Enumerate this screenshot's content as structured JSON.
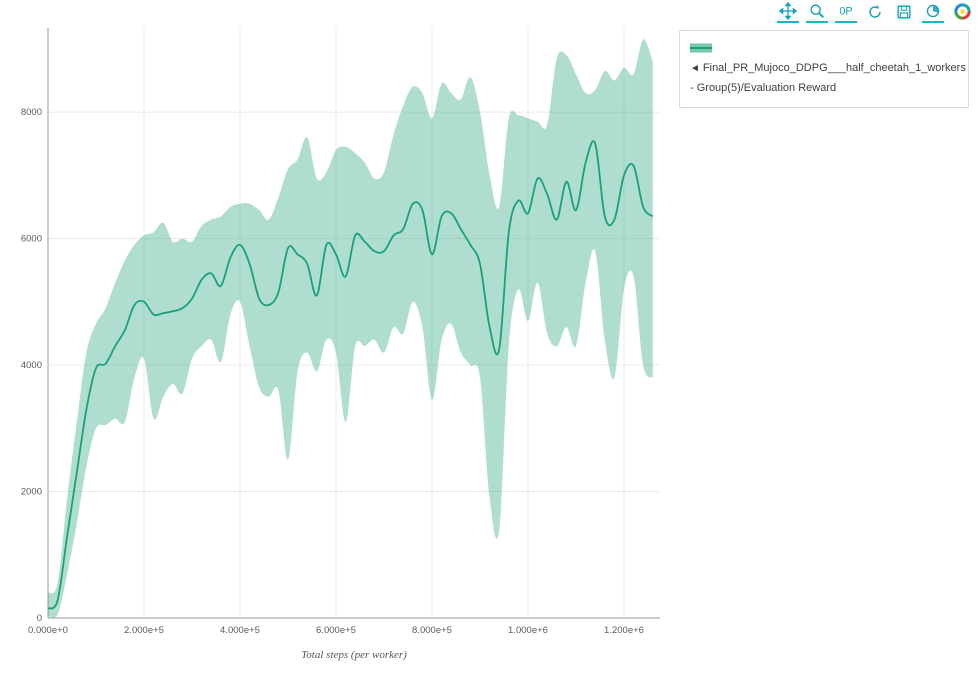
{
  "colors": {
    "accent": "#0fa3b8",
    "line": "#1aa179",
    "band": "#1aa179",
    "band_opacity": 0.35,
    "grid": "#ebebeb",
    "zeroline": "#9a9a9a",
    "logo_segments": [
      "#1aa8a0",
      "#e53935",
      "#43a047",
      "#1e88e5",
      "#fdd835"
    ]
  },
  "toolbar": {
    "zoom_text_icon_label": "0P",
    "icons": [
      {
        "name": "pan-icon",
        "active": true
      },
      {
        "name": "zoom-icon",
        "active": true
      },
      {
        "name": "zoom-text-icon",
        "active": true
      },
      {
        "name": "refresh-icon",
        "active": false
      },
      {
        "name": "save-icon",
        "active": false
      },
      {
        "name": "timer-icon",
        "active": true
      },
      {
        "name": "logo-icon",
        "active": false
      }
    ]
  },
  "legend": {
    "toggle_glyph": "◄",
    "label": "Final_PR_Mujoco_DDPG___half_cheetah_1_workers - Group(5)/Evaluation Reward"
  },
  "chart_data": {
    "type": "line",
    "title": "",
    "xlabel": "Total steps (per worker)",
    "ylabel": "",
    "xlim": [
      0,
      1275000
    ],
    "ylim": [
      0,
      9330
    ],
    "grid": true,
    "legend_position": "top-right",
    "x_ticks": [
      {
        "value": 0,
        "label": "0.000e+0"
      },
      {
        "value": 200000,
        "label": "2.000e+5"
      },
      {
        "value": 400000,
        "label": "4.000e+5"
      },
      {
        "value": 600000,
        "label": "6.000e+5"
      },
      {
        "value": 800000,
        "label": "8.000e+5"
      },
      {
        "value": 1000000,
        "label": "1.000e+6"
      },
      {
        "value": 1200000,
        "label": "1.200e+6"
      }
    ],
    "y_ticks": [
      {
        "value": 0,
        "label": "0"
      },
      {
        "value": 2000,
        "label": "2000"
      },
      {
        "value": 4000,
        "label": "4000"
      },
      {
        "value": 6000,
        "label": "6000"
      },
      {
        "value": 8000,
        "label": "8000"
      }
    ],
    "series": [
      {
        "name": "Final_PR_Mujoco_DDPG___half_cheetah_1_workers - Group(5)/Evaluation Reward",
        "x": [
          0,
          20000,
          40000,
          60000,
          80000,
          100000,
          120000,
          140000,
          160000,
          180000,
          200000,
          220000,
          240000,
          260000,
          280000,
          300000,
          320000,
          340000,
          360000,
          380000,
          400000,
          420000,
          440000,
          460000,
          480000,
          500000,
          520000,
          540000,
          560000,
          580000,
          600000,
          620000,
          640000,
          660000,
          680000,
          700000,
          720000,
          740000,
          760000,
          780000,
          800000,
          820000,
          840000,
          860000,
          880000,
          900000,
          920000,
          940000,
          960000,
          980000,
          1000000,
          1020000,
          1040000,
          1060000,
          1080000,
          1100000,
          1120000,
          1140000,
          1160000,
          1180000,
          1200000,
          1220000,
          1240000,
          1260000
        ],
        "mean": [
          150,
          280,
          1300,
          2300,
          3300,
          3950,
          4020,
          4300,
          4550,
          4950,
          5000,
          4800,
          4820,
          4850,
          4900,
          5050,
          5350,
          5450,
          5250,
          5700,
          5900,
          5600,
          5050,
          4950,
          5150,
          5850,
          5750,
          5600,
          5100,
          5900,
          5750,
          5400,
          6050,
          5950,
          5800,
          5800,
          6050,
          6150,
          6550,
          6450,
          5750,
          6350,
          6400,
          6150,
          5900,
          5600,
          4600,
          4250,
          6100,
          6600,
          6400,
          6950,
          6700,
          6300,
          6900,
          6450,
          7200,
          7500,
          6350,
          6300,
          7000,
          7150,
          6500,
          6350
        ],
        "lower": [
          30,
          60,
          700,
          1500,
          2400,
          3000,
          3050,
          3150,
          3100,
          3800,
          4100,
          3150,
          3500,
          3700,
          3550,
          4100,
          4300,
          4400,
          4050,
          4800,
          5000,
          4300,
          3650,
          3500,
          3600,
          2500,
          3900,
          4200,
          3900,
          4400,
          4200,
          3100,
          4300,
          4300,
          4400,
          4200,
          4600,
          4500,
          5000,
          4600,
          3450,
          4400,
          4650,
          4200,
          4000,
          3800,
          1900,
          1400,
          4300,
          5200,
          4700,
          5300,
          4500,
          4300,
          4600,
          4300,
          5300,
          5800,
          4400,
          3800,
          5200,
          5400,
          4000,
          3800
        ],
        "upper": [
          400,
          550,
          1900,
          3100,
          4200,
          4650,
          4900,
          5300,
          5650,
          5900,
          6050,
          6100,
          6250,
          5950,
          6000,
          5950,
          6200,
          6300,
          6350,
          6500,
          6550,
          6550,
          6450,
          6300,
          6650,
          7100,
          7250,
          7600,
          6950,
          7050,
          7400,
          7450,
          7350,
          7200,
          6950,
          7050,
          7650,
          8100,
          8400,
          8300,
          7900,
          8450,
          8300,
          8200,
          8550,
          8000,
          7000,
          6500,
          7900,
          7950,
          7900,
          7850,
          7800,
          8850,
          8900,
          8600,
          8300,
          8350,
          8650,
          8500,
          8700,
          8600,
          9150,
          8800
        ]
      }
    ]
  }
}
